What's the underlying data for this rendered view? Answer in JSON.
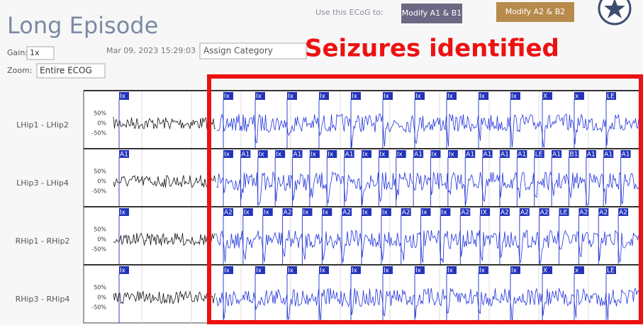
{
  "header": {
    "title": "Long Episode",
    "use_prompt": "Use this ECoG to:",
    "buttons": [
      "Modify A1 & B1",
      "Modify A2 & B2"
    ]
  },
  "controls": {
    "gain_label": "Gain:",
    "gain_value": "1x",
    "zoom_label": "Zoom:",
    "zoom_value": "Entire ECOG",
    "timestamp": "Mar 09, 2023 15:29:03",
    "category": "Assign Category"
  },
  "annotation": "Seizures identified",
  "scale_labels": [
    "50%",
    "0%",
    "-50%"
  ],
  "channels": [
    {
      "name": "LHip1 - LHip2",
      "markers": [
        "Ix",
        "Ix",
        "Ix",
        "Ix",
        "Ix",
        "Ix",
        "Ix",
        "Ix",
        "Ix",
        "Ix",
        "Ix",
        "X",
        "x",
        "LE"
      ]
    },
    {
      "name": "LHip3 - LHip4",
      "markers": [
        "A1",
        "Ix",
        "A1",
        "Ix",
        "Ix",
        "A1",
        "Ix",
        "Ix",
        "A1",
        "Ix",
        "Ix",
        "Ix",
        "A1",
        "Ix",
        "Ix",
        "A1",
        "A1",
        "A1",
        "A1",
        "LE",
        "A1",
        "B1",
        "A1",
        "A1",
        "A1"
      ]
    },
    {
      "name": "RHip1 - RHip2",
      "markers": [
        "Ix",
        "A2",
        "Ix",
        "Ix",
        "A2",
        "Ix",
        "Ix",
        "A2",
        "Ix",
        "Ix",
        "A2",
        "Ix",
        "Ix",
        "A2",
        "IX",
        "A2",
        "A2",
        "A2",
        "LE",
        "A2",
        "A2",
        "A2"
      ]
    },
    {
      "name": "RHip3 - RHip4",
      "markers": [
        "Ix",
        "Ix",
        "Ix",
        "Ix",
        "Ix",
        "Ix",
        "Ix",
        "Ix",
        "Ix",
        "Ix",
        "Ix",
        "X",
        "x",
        "LE"
      ]
    }
  ]
}
